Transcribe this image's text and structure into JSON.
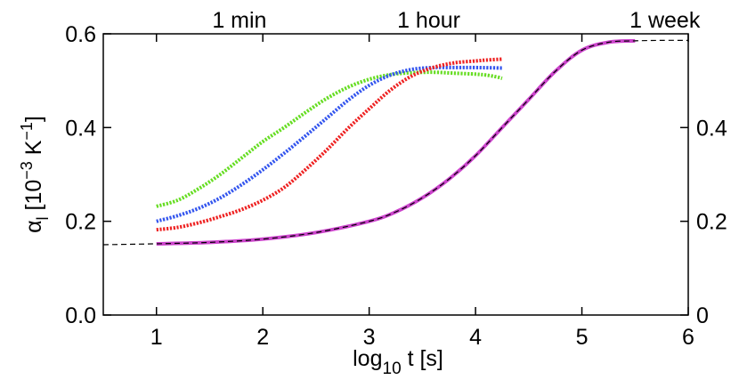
{
  "chart_data": {
    "type": "line",
    "title": "",
    "xlabel": {
      "base": "log",
      "sub": "10",
      "rest": " t [s]"
    },
    "ylabel": {
      "alpha": "α",
      "sub": "l",
      "unit_open": " [10",
      "exp1": "−3",
      "unit_mid": " K",
      "exp2": "−1",
      "unit_close": "]"
    },
    "xlim": [
      0.5,
      6
    ],
    "ylim": [
      0.0,
      0.6
    ],
    "grid": false,
    "x_ticks": [
      {
        "v": 1,
        "label": "1"
      },
      {
        "v": 2,
        "label": "2"
      },
      {
        "v": 3,
        "label": "3"
      },
      {
        "v": 4,
        "label": "4"
      },
      {
        "v": 5,
        "label": "5"
      },
      {
        "v": 6,
        "label": "6"
      }
    ],
    "y_ticks_left": [
      {
        "v": 0.0,
        "label": "0.0"
      },
      {
        "v": 0.2,
        "label": "0.2"
      },
      {
        "v": 0.4,
        "label": "0.4"
      },
      {
        "v": 0.6,
        "label": "0.6"
      }
    ],
    "y_ticks_right": [
      {
        "v": 0.0,
        "label": "0"
      },
      {
        "v": 0.2,
        "label": "0.2"
      },
      {
        "v": 0.4,
        "label": "0.4"
      }
    ],
    "top_annotations": [
      {
        "x": 1.78,
        "label": "1 min"
      },
      {
        "x": 3.56,
        "label": "1 hour"
      },
      {
        "x": 5.78,
        "label": "1 week"
      }
    ],
    "series": [
      {
        "color": "#66dd22",
        "style": "markers",
        "x": [
          1.0,
          1.2,
          1.4,
          1.6,
          1.8,
          2.0,
          2.2,
          2.4,
          2.6,
          2.8,
          3.0,
          3.2,
          3.4,
          3.6,
          3.8,
          4.0,
          4.1,
          4.2,
          4.25
        ],
        "y": [
          0.232,
          0.245,
          0.27,
          0.3,
          0.335,
          0.37,
          0.4,
          0.432,
          0.462,
          0.486,
          0.503,
          0.513,
          0.517,
          0.518,
          0.516,
          0.514,
          0.512,
          0.508,
          0.505
        ]
      },
      {
        "color": "#3355ee",
        "style": "markers",
        "x": [
          1.0,
          1.2,
          1.4,
          1.6,
          1.8,
          2.0,
          2.2,
          2.4,
          2.6,
          2.8,
          3.0,
          3.2,
          3.4,
          3.6,
          3.8,
          4.0,
          4.25
        ],
        "y": [
          0.2,
          0.212,
          0.228,
          0.25,
          0.278,
          0.31,
          0.345,
          0.382,
          0.42,
          0.458,
          0.49,
          0.512,
          0.524,
          0.528,
          0.528,
          0.528,
          0.527
        ]
      },
      {
        "color": "#ee2222",
        "style": "markers",
        "x": [
          1.0,
          1.2,
          1.4,
          1.6,
          1.8,
          2.0,
          2.2,
          2.4,
          2.6,
          2.8,
          3.0,
          3.2,
          3.4,
          3.6,
          3.8,
          4.0,
          4.1,
          4.25
        ],
        "y": [
          0.182,
          0.187,
          0.197,
          0.21,
          0.225,
          0.245,
          0.272,
          0.31,
          0.352,
          0.398,
          0.44,
          0.48,
          0.51,
          0.528,
          0.538,
          0.542,
          0.544,
          0.546
        ]
      },
      {
        "color": "#cc44cc",
        "style": "line",
        "x": [
          1.0,
          1.5,
          2.0,
          2.5,
          3.0,
          3.25,
          3.5,
          3.75,
          4.0,
          4.25,
          4.5,
          4.75,
          5.0,
          5.25,
          5.5
        ],
        "y": [
          0.152,
          0.155,
          0.162,
          0.176,
          0.2,
          0.22,
          0.25,
          0.29,
          0.34,
          0.4,
          0.46,
          0.52,
          0.565,
          0.582,
          0.585
        ]
      },
      {
        "color": "#000000",
        "style": "dashed",
        "x": [
          0.5,
          0.75,
          1.0,
          1.5,
          2.0,
          2.5,
          3.0,
          3.25,
          3.5,
          3.75,
          4.0,
          4.25,
          4.5,
          4.75,
          5.0,
          5.25,
          5.5,
          5.75,
          6.0
        ],
        "y": [
          0.15,
          0.151,
          0.152,
          0.155,
          0.162,
          0.176,
          0.2,
          0.22,
          0.25,
          0.29,
          0.34,
          0.4,
          0.46,
          0.52,
          0.565,
          0.582,
          0.585,
          0.586,
          0.586
        ]
      }
    ]
  }
}
